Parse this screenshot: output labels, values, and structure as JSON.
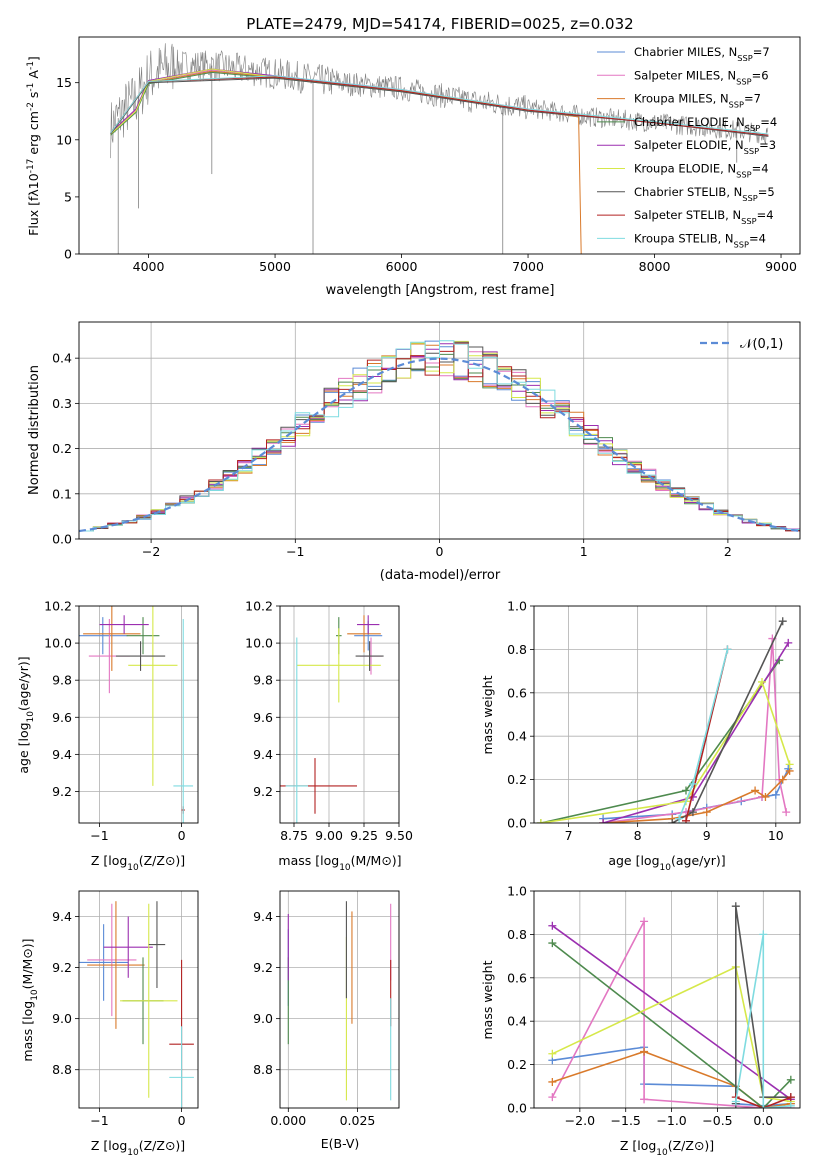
{
  "colors": {
    "chabrier_miles": "#5b8bd6",
    "salpeter_miles": "#e377c2",
    "kroupa_miles": "#d97a2b",
    "chabrier_elodie": "#4e8a4e",
    "salpeter_elodie": "#9b2fb0",
    "kroupa_elodie": "#d6e84a",
    "chabrier_stelib": "#555555",
    "salpeter_stelib": "#b22222",
    "kroupa_stelib": "#7fdbe0"
  },
  "chart_data": [
    {
      "id": "spectrum",
      "type": "line",
      "title": "PLATE=2479, MJD=54174, FIBERID=0025, z=0.032",
      "xlabel": "wavelength [Angstrom, rest frame]",
      "ylabel": "Flux [f_λ10^-17 erg cm^-2 s^-1 A^-1]",
      "xlim": [
        3450,
        9150
      ],
      "ylim": [
        0,
        19
      ],
      "xticks": [
        4000,
        5000,
        6000,
        7000,
        8000,
        9000
      ],
      "yticks": [
        0,
        5,
        10,
        15
      ],
      "legend_position": "top-right",
      "legend": [
        "Chabrier MILES, N_SSP=7",
        "Salpeter MILES, N_SSP=6",
        "Kroupa MILES, N_SSP=7",
        "Chabrier ELODIE, N_SSP=4",
        "Salpeter ELODIE, N_SSP=3",
        "Kroupa ELODIE, N_SSP=4",
        "Chabrier STELIB, N_SSP=5",
        "Salpeter STELIB, N_SSP=4",
        "Kroupa STELIB, N_SSP=4"
      ],
      "data_series": {
        "name": "",
        "x": [
          3700,
          3800,
          3900,
          4000,
          4200,
          4500,
          5000,
          5500,
          6000,
          6500,
          7000,
          7500,
          8000,
          8500,
          8900
        ],
        "y": [
          11,
          12.5,
          13.5,
          15.5,
          16.5,
          16.5,
          15.8,
          15,
          14.5,
          13.5,
          12.8,
          12,
          11.5,
          11,
          10.5
        ]
      },
      "model_series": [
        {
          "key": "chabrier_miles",
          "x": [
            3700,
            3900,
            4000,
            4500,
            5000,
            6000,
            7000,
            7400
          ],
          "y": [
            10.5,
            12.5,
            15,
            16,
            15.5,
            14.3,
            12.6,
            12
          ]
        },
        {
          "key": "salpeter_miles",
          "x": [
            3700,
            3900,
            4000,
            4500,
            5000,
            6000,
            7000,
            7400
          ],
          "y": [
            10.5,
            12.6,
            15.1,
            16.1,
            15.6,
            14.4,
            12.7,
            12.1
          ]
        },
        {
          "key": "kroupa_miles",
          "x": [
            3700,
            3900,
            4000,
            4500,
            5000,
            6000,
            7000,
            7400,
            7420
          ],
          "y": [
            10.5,
            12.5,
            15,
            16,
            15.5,
            14.3,
            12.6,
            12,
            0
          ]
        },
        {
          "key": "chabrier_elodie",
          "x": [
            3700,
            3900,
            4000,
            4500,
            5000,
            6000,
            6800
          ],
          "y": [
            10.4,
            12.4,
            14.9,
            15.9,
            15.4,
            14.2,
            13
          ]
        },
        {
          "key": "salpeter_elodie",
          "x": [
            3700,
            3900,
            4000,
            4500,
            5000,
            6000,
            6800
          ],
          "y": [
            10.6,
            12.7,
            15.2,
            16.2,
            15.6,
            14.3,
            13
          ]
        },
        {
          "key": "kroupa_elodie",
          "x": [
            3700,
            3900,
            4000,
            4500,
            5000,
            6000,
            6800
          ],
          "y": [
            10.5,
            12.5,
            15.1,
            16.2,
            15.5,
            14.3,
            13
          ]
        },
        {
          "key": "chabrier_stelib",
          "x": [
            3700,
            4000,
            5000,
            6000,
            7000,
            8000,
            8900
          ],
          "y": [
            10.5,
            15,
            15.4,
            14.2,
            12.5,
            11.5,
            10.3
          ]
        },
        {
          "key": "salpeter_stelib",
          "x": [
            3700,
            4000,
            5000,
            6000,
            7000,
            8000,
            8900
          ],
          "y": [
            10.6,
            15.1,
            15.5,
            14.3,
            12.6,
            11.5,
            10.4
          ]
        },
        {
          "key": "kroupa_stelib",
          "x": [
            3700,
            4000,
            5000,
            6000,
            7000,
            8000,
            8900
          ],
          "y": [
            10.6,
            15.1,
            15.6,
            14.4,
            12.7,
            11.6,
            10.5
          ]
        }
      ]
    },
    {
      "id": "residual_hist",
      "type": "line",
      "xlabel": "(data-model)/error",
      "ylabel": "Normed distribution",
      "xlim": [
        -2.5,
        2.5
      ],
      "ylim": [
        0,
        0.48
      ],
      "xticks": [
        -2,
        -1,
        0,
        1,
        2
      ],
      "yticks": [
        0.0,
        0.1,
        0.2,
        0.3,
        0.4
      ],
      "legend_position": "top-right",
      "legend": [
        "𝒩(0,1)"
      ],
      "bin_width": 0.1,
      "reference_curve": "gaussian(0,1)"
    },
    {
      "id": "age_vs_Z",
      "type": "scatter",
      "xlabel": "Z [log10(Z/Z_sun)]",
      "ylabel": "age  [log10(age/yr)]",
      "xlim": [
        -1.25,
        0.2
      ],
      "ylim": [
        9.03,
        10.2
      ],
      "xticks": [
        -1,
        0
      ],
      "yticks": [
        9.2,
        9.4,
        9.6,
        9.8,
        10.0,
        10.2
      ],
      "points": [
        {
          "key": "chabrier_miles",
          "x": -0.96,
          "y": 10.04,
          "xerr": 0.3,
          "yerr": 0.1
        },
        {
          "key": "salpeter_miles",
          "x": -0.88,
          "y": 9.93,
          "xerr": 0.25,
          "yerr": 0.2
        },
        {
          "key": "kroupa_miles",
          "x": -0.85,
          "y": 10.05,
          "xerr": 0.35,
          "yerr": 0.2
        },
        {
          "key": "chabrier_elodie",
          "x": -0.47,
          "y": 10.04,
          "xerr": 0.2,
          "yerr": 0.1
        },
        {
          "key": "salpeter_elodie",
          "x": -0.7,
          "y": 10.1,
          "xerr": 0.3,
          "yerr": 0.05
        },
        {
          "key": "kroupa_elodie",
          "x": -0.35,
          "y": 9.88,
          "xerr": 0.3,
          "yerr": 0.65
        },
        {
          "key": "chabrier_stelib",
          "x": -0.5,
          "y": 9.93,
          "xerr": 0.3,
          "yerr": 0.08
        },
        {
          "key": "salpeter_stelib",
          "x": 0.02,
          "y": 9.1,
          "xerr": 0.02,
          "yerr": 0.02
        },
        {
          "key": "kroupa_stelib",
          "x": 0.02,
          "y": 9.23,
          "xerr": 0.12,
          "yerr": 0.9
        }
      ]
    },
    {
      "id": "age_vs_mass",
      "type": "scatter",
      "xlabel": "mass [log10(M/M_sun)]",
      "ylabel": "",
      "xlim": [
        8.65,
        9.5
      ],
      "ylim": [
        9.03,
        10.2
      ],
      "xticks": [
        8.75,
        9.0,
        9.25,
        9.5
      ],
      "yticks": [
        9.2,
        9.4,
        9.6,
        9.8,
        10.0,
        10.2
      ],
      "points": [
        {
          "key": "chabrier_miles",
          "x": 9.28,
          "y": 10.04,
          "xerr": 0.1,
          "yerr": 0.08
        },
        {
          "key": "salpeter_miles",
          "x": 9.3,
          "y": 9.93,
          "xerr": 0.08,
          "yerr": 0.1
        },
        {
          "key": "kroupa_miles",
          "x": 9.25,
          "y": 10.05,
          "xerr": 0.12,
          "yerr": 0.1
        },
        {
          "key": "chabrier_elodie",
          "x": 9.07,
          "y": 10.04,
          "xerr": 0.02,
          "yerr": 0.1
        },
        {
          "key": "salpeter_elodie",
          "x": 9.28,
          "y": 10.1,
          "xerr": 0.08,
          "yerr": 0.05
        },
        {
          "key": "kroupa_elodie",
          "x": 9.07,
          "y": 9.88,
          "xerr": 0.3,
          "yerr": 0.2
        },
        {
          "key": "chabrier_stelib",
          "x": 9.29,
          "y": 9.93,
          "xerr": 0.1,
          "yerr": 0.08
        },
        {
          "key": "salpeter_stelib",
          "x": 8.9,
          "y": 9.23,
          "xerr": 0.3,
          "yerr": 0.15
        },
        {
          "key": "kroupa_stelib",
          "x": 8.77,
          "y": 9.23,
          "xerr": 0.08,
          "yerr": 0.8
        }
      ]
    },
    {
      "id": "weight_vs_age",
      "type": "line",
      "xlabel": "age  [log10(age/yr)]",
      "ylabel": "mass weight",
      "xlim": [
        6.5,
        10.35
      ],
      "ylim": [
        0,
        1.0
      ],
      "xticks": [
        7,
        8,
        9,
        10
      ],
      "yticks": [
        0.0,
        0.2,
        0.4,
        0.6,
        0.8,
        1.0
      ],
      "series": [
        {
          "key": "chabrier_miles",
          "x": [
            7.5,
            8.5,
            9.0,
            9.5,
            9.8,
            10.0,
            10.18
          ],
          "y": [
            0.02,
            0.04,
            0.07,
            0.1,
            0.12,
            0.13,
            0.25
          ]
        },
        {
          "key": "salpeter_miles",
          "x": [
            7.5,
            8.7,
            9.8,
            9.95,
            10.05,
            10.15
          ],
          "y": [
            0.0,
            0.05,
            0.12,
            0.85,
            0.2,
            0.05
          ]
        },
        {
          "key": "kroupa_miles",
          "x": [
            7.5,
            8.5,
            9.0,
            9.7,
            9.85,
            10.1,
            10.2
          ],
          "y": [
            0.0,
            0.02,
            0.05,
            0.15,
            0.12,
            0.2,
            0.24
          ]
        },
        {
          "key": "chabrier_elodie",
          "x": [
            6.6,
            8.7,
            10.05
          ],
          "y": [
            0.0,
            0.15,
            0.75
          ]
        },
        {
          "key": "salpeter_elodie",
          "x": [
            7.5,
            8.8,
            10.18
          ],
          "y": [
            0.0,
            0.12,
            0.83
          ]
        },
        {
          "key": "kroupa_elodie",
          "x": [
            6.6,
            8.7,
            9.8,
            10.2
          ],
          "y": [
            0.0,
            0.1,
            0.65,
            0.27
          ]
        },
        {
          "key": "chabrier_stelib",
          "x": [
            8.5,
            8.8,
            10.1
          ],
          "y": [
            0.0,
            0.05,
            0.93
          ]
        },
        {
          "key": "salpeter_stelib",
          "x": [
            8.7,
            9.3
          ],
          "y": [
            0.01,
            0.8
          ]
        },
        {
          "key": "kroupa_stelib",
          "x": [
            8.6,
            8.8,
            9.3
          ],
          "y": [
            0.02,
            0.18,
            0.8
          ]
        }
      ]
    },
    {
      "id": "mass_vs_Z",
      "type": "scatter",
      "xlabel": "Z [log10(Z/Z_sun)]",
      "ylabel": "mass [log10(M/M_sun)]",
      "xlim": [
        -1.25,
        0.2
      ],
      "ylim": [
        8.65,
        9.5
      ],
      "xticks": [
        -1,
        0
      ],
      "yticks": [
        8.8,
        9.0,
        9.2,
        9.4
      ],
      "points": [
        {
          "key": "chabrier_miles",
          "x": -0.95,
          "y": 9.22,
          "xerr": 0.3,
          "yerr": 0.15
        },
        {
          "key": "salpeter_miles",
          "x": -0.85,
          "y": 9.23,
          "xerr": 0.3,
          "yerr": 0.22
        },
        {
          "key": "kroupa_miles",
          "x": -0.8,
          "y": 9.21,
          "xerr": 0.35,
          "yerr": 0.25
        },
        {
          "key": "chabrier_elodie",
          "x": -0.47,
          "y": 9.07,
          "xerr": 0.25,
          "yerr": 0.17
        },
        {
          "key": "salpeter_elodie",
          "x": -0.65,
          "y": 9.28,
          "xerr": 0.3,
          "yerr": 0.12
        },
        {
          "key": "kroupa_elodie",
          "x": -0.4,
          "y": 9.07,
          "xerr": 0.35,
          "yerr": 0.38
        },
        {
          "key": "chabrier_stelib",
          "x": -0.3,
          "y": 9.29,
          "xerr": 0.1,
          "yerr": 0.17
        },
        {
          "key": "salpeter_stelib",
          "x": 0.0,
          "y": 8.9,
          "xerr": 0.15,
          "yerr": 0.33
        },
        {
          "key": "kroupa_stelib",
          "x": 0.0,
          "y": 8.77,
          "xerr": 0.15,
          "yerr": 0.2
        }
      ]
    },
    {
      "id": "mass_vs_ebv",
      "type": "scatter",
      "xlabel": "E(B-V)",
      "ylabel": "",
      "xlim": [
        -0.003,
        0.04
      ],
      "ylim": [
        8.65,
        9.5
      ],
      "xticks": [
        0.0,
        0.025
      ],
      "yticks": [
        8.8,
        9.0,
        9.2,
        9.4
      ],
      "points": [
        {
          "key": "chabrier_miles",
          "x": 0.0,
          "y": 9.2,
          "yerr": 0.15
        },
        {
          "key": "salpeter_miles",
          "x": 0.037,
          "y": 9.3,
          "yerr": 0.15
        },
        {
          "key": "kroupa_miles",
          "x": 0.023,
          "y": 9.2,
          "yerr": 0.22
        },
        {
          "key": "chabrier_elodie",
          "x": 0.0,
          "y": 9.07,
          "yerr": 0.17
        },
        {
          "key": "salpeter_elodie",
          "x": 0.0,
          "y": 9.28,
          "yerr": 0.13
        },
        {
          "key": "kroupa_elodie",
          "x": 0.021,
          "y": 9.0,
          "yerr": 0.32
        },
        {
          "key": "chabrier_stelib",
          "x": 0.021,
          "y": 9.27,
          "yerr": 0.19
        },
        {
          "key": "salpeter_stelib",
          "x": 0.037,
          "y": 9.1,
          "yerr": 0.13
        },
        {
          "key": "kroupa_stelib",
          "x": 0.037,
          "y": 8.88,
          "yerr": 0.2
        }
      ]
    },
    {
      "id": "weight_vs_Z",
      "type": "line",
      "xlabel": "Z [log10(Z/Z_sun)]",
      "ylabel": "mass weight",
      "xlim": [
        -2.5,
        0.4
      ],
      "ylim": [
        0,
        1.0
      ],
      "xticks": [
        -2.0,
        -1.5,
        -1.0,
        -0.5,
        0.0
      ],
      "yticks": [
        0.0,
        0.2,
        0.4,
        0.6,
        0.8,
        1.0
      ],
      "series": [
        {
          "key": "chabrier_miles",
          "x": [
            -2.3,
            -1.3,
            -1.3,
            -0.3,
            -0.3,
            0.0,
            0.3
          ],
          "y": [
            0.22,
            0.28,
            0.11,
            0.1,
            0.02,
            0.01,
            0.02
          ]
        },
        {
          "key": "salpeter_miles",
          "x": [
            -2.3,
            -1.3,
            -1.3,
            0.0,
            0.3
          ],
          "y": [
            0.05,
            0.86,
            0.04,
            0.0,
            0.0
          ]
        },
        {
          "key": "kroupa_miles",
          "x": [
            -2.3,
            -1.3,
            -0.3,
            0.0,
            0.3
          ],
          "y": [
            0.12,
            0.26,
            0.1,
            0.0,
            0.02
          ]
        },
        {
          "key": "chabrier_elodie",
          "x": [
            -2.3,
            0.0,
            0.3
          ],
          "y": [
            0.76,
            0.0,
            0.13
          ]
        },
        {
          "key": "salpeter_elodie",
          "x": [
            -2.3,
            0.3
          ],
          "y": [
            0.84,
            0.04
          ]
        },
        {
          "key": "kroupa_elodie",
          "x": [
            -2.3,
            -0.3,
            0.0,
            0.3
          ],
          "y": [
            0.25,
            0.65,
            0.05,
            0.03
          ]
        },
        {
          "key": "chabrier_stelib",
          "x": [
            -0.3,
            -0.3,
            0.0,
            0.3
          ],
          "y": [
            0.02,
            0.93,
            0.05,
            0.05
          ]
        },
        {
          "key": "salpeter_stelib",
          "x": [
            -0.3,
            0.0,
            0.3
          ],
          "y": [
            0.05,
            0.0,
            0.05
          ]
        },
        {
          "key": "kroupa_stelib",
          "x": [
            -0.3,
            0.0,
            0.0,
            0.3
          ],
          "y": [
            0.03,
            0.8,
            0.0,
            0.01
          ]
        }
      ]
    }
  ]
}
